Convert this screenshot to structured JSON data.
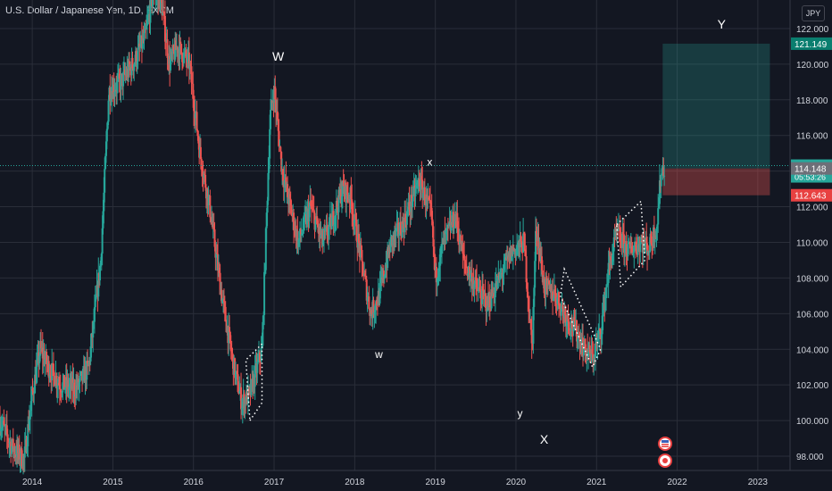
{
  "header": {
    "symbol": "U.S. Dollar / Japanese Yen, 1D, FXCM",
    "currency_button": "JPY"
  },
  "colors": {
    "background": "#131722",
    "grid": "#2a2e39",
    "up": "#26a69a",
    "down": "#ef5350",
    "text": "#d1d4dc",
    "profit_zone": "rgba(38,166,154,0.25)",
    "loss_zone": "rgba(239,83,80,0.35)"
  },
  "chart_data": {
    "type": "candlestick",
    "title": "U.S. Dollar / Japanese Yen, 1D, FXCM",
    "xlabel": "",
    "ylabel": "",
    "ylim": [
      97.2,
      123.6
    ],
    "xlim": [
      2013.6,
      2023.4
    ],
    "y_ticks": [
      "98.000",
      "100.000",
      "102.000",
      "104.000",
      "106.000",
      "108.000",
      "110.000",
      "112.000",
      "114.000",
      "116.000",
      "118.000",
      "120.000",
      "122.000"
    ],
    "y_tick_values": [
      98,
      100,
      102,
      104,
      106,
      108,
      110,
      112,
      114,
      116,
      118,
      120,
      122
    ],
    "x_ticks": [
      "2014",
      "2015",
      "2016",
      "2017",
      "2018",
      "2019",
      "2020",
      "2021",
      "2022",
      "2023"
    ],
    "x_tick_values": [
      2014,
      2015,
      2016,
      2017,
      2018,
      2019,
      2020,
      2021,
      2022,
      2023
    ],
    "price_path": [
      [
        2013.6,
        100.0
      ],
      [
        2013.75,
        98.5
      ],
      [
        2013.9,
        97.8
      ],
      [
        2014.0,
        101.5
      ],
      [
        2014.1,
        104.0
      ],
      [
        2014.2,
        103.0
      ],
      [
        2014.35,
        102.0
      ],
      [
        2014.55,
        101.8
      ],
      [
        2014.7,
        103.0
      ],
      [
        2014.85,
        109.0
      ],
      [
        2014.95,
        118.5
      ],
      [
        2015.1,
        119.0
      ],
      [
        2015.25,
        120.0
      ],
      [
        2015.4,
        121.5
      ],
      [
        2015.5,
        124.0
      ],
      [
        2015.6,
        123.5
      ],
      [
        2015.7,
        120.0
      ],
      [
        2015.8,
        121.0
      ],
      [
        2015.95,
        120.0
      ],
      [
        2016.08,
        115.0
      ],
      [
        2016.2,
        112.0
      ],
      [
        2016.35,
        107.0
      ],
      [
        2016.5,
        103.0
      ],
      [
        2016.6,
        101.0
      ],
      [
        2016.7,
        101.5
      ],
      [
        2016.85,
        104.0
      ],
      [
        2016.95,
        117.0
      ],
      [
        2017.0,
        118.6
      ],
      [
        2017.1,
        114.0
      ],
      [
        2017.2,
        112.0
      ],
      [
        2017.3,
        110.0
      ],
      [
        2017.45,
        112.0
      ],
      [
        2017.6,
        110.0
      ],
      [
        2017.7,
        111.0
      ],
      [
        2017.85,
        113.0
      ],
      [
        2017.95,
        112.5
      ],
      [
        2018.1,
        108.5
      ],
      [
        2018.2,
        106.0
      ],
      [
        2018.3,
        107.0
      ],
      [
        2018.45,
        110.0
      ],
      [
        2018.6,
        111.0
      ],
      [
        2018.8,
        113.5
      ],
      [
        2018.95,
        111.5
      ],
      [
        2019.0,
        108.0
      ],
      [
        2019.1,
        110.0
      ],
      [
        2019.25,
        111.5
      ],
      [
        2019.35,
        109.0
      ],
      [
        2019.5,
        107.5
      ],
      [
        2019.65,
        106.5
      ],
      [
        2019.8,
        108.0
      ],
      [
        2019.95,
        109.5
      ],
      [
        2020.1,
        110.0
      ],
      [
        2020.2,
        104.0
      ],
      [
        2020.25,
        111.0
      ],
      [
        2020.35,
        107.5
      ],
      [
        2020.5,
        107.0
      ],
      [
        2020.6,
        106.0
      ],
      [
        2020.75,
        105.0
      ],
      [
        2020.85,
        104.0
      ],
      [
        2020.95,
        103.5
      ],
      [
        2021.05,
        105.0
      ],
      [
        2021.15,
        108.5
      ],
      [
        2021.25,
        110.5
      ],
      [
        2021.4,
        109.5
      ],
      [
        2021.55,
        110.0
      ],
      [
        2021.65,
        109.7
      ],
      [
        2021.75,
        111.0
      ],
      [
        2021.8,
        114.0
      ],
      [
        2021.85,
        114.3
      ]
    ],
    "annotations": [
      {
        "text": "W",
        "x": 2017.05,
        "y": 120.2
      },
      {
        "text": "x",
        "x": 2018.93,
        "y": 114.3
      },
      {
        "text": "w",
        "x": 2018.3,
        "y": 103.5
      },
      {
        "text": "y",
        "x": 2020.05,
        "y": 100.2
      },
      {
        "text": "X",
        "x": 2020.35,
        "y": 98.7
      },
      {
        "text": "Y",
        "x": 2022.55,
        "y": 122.0
      }
    ],
    "position": {
      "x_start": 2021.82,
      "x_end": 2023.15,
      "target": 121.149,
      "entry": 114.148,
      "stop": 112.643
    },
    "price_labels": [
      {
        "value": 121.149,
        "text": "121.149",
        "color": "#0a7e6f"
      },
      {
        "value": 114.305,
        "text": "114.305",
        "sub": "05:53:26",
        "color": "#26a69a"
      },
      {
        "value": 114.148,
        "text": "114.148",
        "color": "#6d6f78"
      },
      {
        "value": 112.643,
        "text": "112.643",
        "color": "#e84141"
      }
    ],
    "current_price": 114.305
  }
}
